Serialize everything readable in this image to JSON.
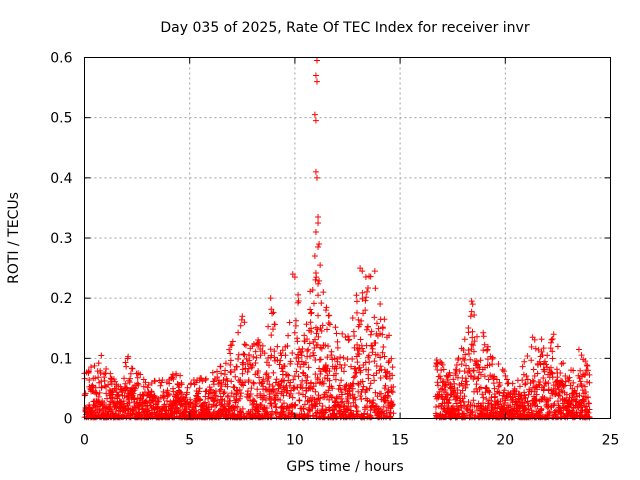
{
  "chart_data": {
    "type": "scatter",
    "title": "Day 035 of 2025, Rate Of TEC Index for receiver invr",
    "xlabel": "GPS time / hours",
    "ylabel": "ROTI / TECUs",
    "xlim": [
      0,
      25
    ],
    "ylim": [
      0,
      0.6
    ],
    "xticks": [
      0,
      5,
      10,
      15,
      20,
      25
    ],
    "yticks": [
      0,
      0.1,
      0.2,
      0.3,
      0.4,
      0.5,
      0.6
    ],
    "ytick_labels": [
      "0",
      "0.1",
      "0.2",
      "0.3",
      "0.4",
      "0.5",
      "0.6"
    ],
    "grid": true,
    "marker": "+",
    "series_color": "#ff0000",
    "data_gap_hours": [
      14.7,
      16.7
    ],
    "envelope": [
      {
        "x": 0.0,
        "y": 0.11
      },
      {
        "x": 0.5,
        "y": 0.09
      },
      {
        "x": 0.8,
        "y": 0.11
      },
      {
        "x": 1.5,
        "y": 0.06
      },
      {
        "x": 2.0,
        "y": 0.11
      },
      {
        "x": 3.0,
        "y": 0.06
      },
      {
        "x": 4.5,
        "y": 0.08
      },
      {
        "x": 5.0,
        "y": 0.06
      },
      {
        "x": 6.5,
        "y": 0.09
      },
      {
        "x": 7.5,
        "y": 0.17
      },
      {
        "x": 8.5,
        "y": 0.12
      },
      {
        "x": 8.9,
        "y": 0.2
      },
      {
        "x": 9.5,
        "y": 0.12
      },
      {
        "x": 10.0,
        "y": 0.24
      },
      {
        "x": 10.5,
        "y": 0.17
      },
      {
        "x": 10.9,
        "y": 0.26
      },
      {
        "x": 11.2,
        "y": 0.23
      },
      {
        "x": 12.0,
        "y": 0.15
      },
      {
        "x": 12.5,
        "y": 0.14
      },
      {
        "x": 13.1,
        "y": 0.25
      },
      {
        "x": 13.8,
        "y": 0.24
      },
      {
        "x": 14.6,
        "y": 0.12
      },
      {
        "x": 16.8,
        "y": 0.1
      },
      {
        "x": 17.5,
        "y": 0.07
      },
      {
        "x": 18.0,
        "y": 0.13
      },
      {
        "x": 18.5,
        "y": 0.19
      },
      {
        "x": 19.5,
        "y": 0.1
      },
      {
        "x": 20.5,
        "y": 0.06
      },
      {
        "x": 21.3,
        "y": 0.13
      },
      {
        "x": 22.3,
        "y": 0.14
      },
      {
        "x": 23.0,
        "y": 0.07
      },
      {
        "x": 23.5,
        "y": 0.12
      },
      {
        "x": 24.0,
        "y": 0.08
      }
    ],
    "outliers": [
      {
        "x": 11.05,
        "y": 0.595
      },
      {
        "x": 11.0,
        "y": 0.57
      },
      {
        "x": 11.05,
        "y": 0.56
      },
      {
        "x": 10.95,
        "y": 0.505
      },
      {
        "x": 11.0,
        "y": 0.495
      },
      {
        "x": 11.0,
        "y": 0.41
      },
      {
        "x": 11.05,
        "y": 0.4
      },
      {
        "x": 11.1,
        "y": 0.335
      },
      {
        "x": 11.1,
        "y": 0.325
      },
      {
        "x": 11.0,
        "y": 0.31
      },
      {
        "x": 11.15,
        "y": 0.29
      },
      {
        "x": 11.1,
        "y": 0.285
      },
      {
        "x": 10.95,
        "y": 0.27
      },
      {
        "x": 11.2,
        "y": 0.255
      },
      {
        "x": 9.9,
        "y": 0.24
      },
      {
        "x": 10.0,
        "y": 0.235
      },
      {
        "x": 13.1,
        "y": 0.25
      },
      {
        "x": 13.2,
        "y": 0.245
      },
      {
        "x": 13.8,
        "y": 0.245
      },
      {
        "x": 8.85,
        "y": 0.2
      },
      {
        "x": 18.4,
        "y": 0.195
      },
      {
        "x": 18.45,
        "y": 0.19
      },
      {
        "x": 7.5,
        "y": 0.17
      },
      {
        "x": 7.6,
        "y": 0.16
      },
      {
        "x": 22.3,
        "y": 0.14
      },
      {
        "x": 21.3,
        "y": 0.135
      }
    ]
  }
}
